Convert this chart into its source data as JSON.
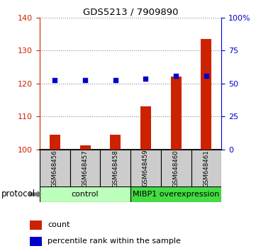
{
  "title": "GDS5213 / 7909890",
  "samples": [
    "GSM648456",
    "GSM648457",
    "GSM648458",
    "GSM648459",
    "GSM648460",
    "GSM648461"
  ],
  "counts": [
    104.5,
    101.2,
    104.5,
    113.0,
    122.0,
    133.5
  ],
  "percentile_ranks_left": [
    121.0,
    121.0,
    121.0,
    121.5,
    122.3,
    122.2
  ],
  "left_ylim": [
    100,
    140
  ],
  "left_yticks": [
    100,
    110,
    120,
    130,
    140
  ],
  "right_ylim": [
    0,
    100
  ],
  "right_yticks": [
    0,
    25,
    50,
    75,
    100
  ],
  "right_yticklabels": [
    "0",
    "25",
    "50",
    "75",
    "100%"
  ],
  "bar_color": "#cc2200",
  "dot_color": "#0000cc",
  "group_control_color": "#bbffbb",
  "group_mibp_color": "#44dd44",
  "group_control_label": "control",
  "group_mibp_label": "MIBP1 overexpression",
  "protocol_label": "protocol",
  "legend_items": [
    {
      "color": "#cc2200",
      "label": "count"
    },
    {
      "color": "#0000cc",
      "label": "percentile rank within the sample"
    }
  ],
  "grid_color": "#888888",
  "background_color": "#ffffff",
  "left_tick_color": "#cc2200",
  "right_tick_color": "#0000cc",
  "bar_width": 0.35,
  "dot_size": 25,
  "sample_box_color": "#cccccc"
}
